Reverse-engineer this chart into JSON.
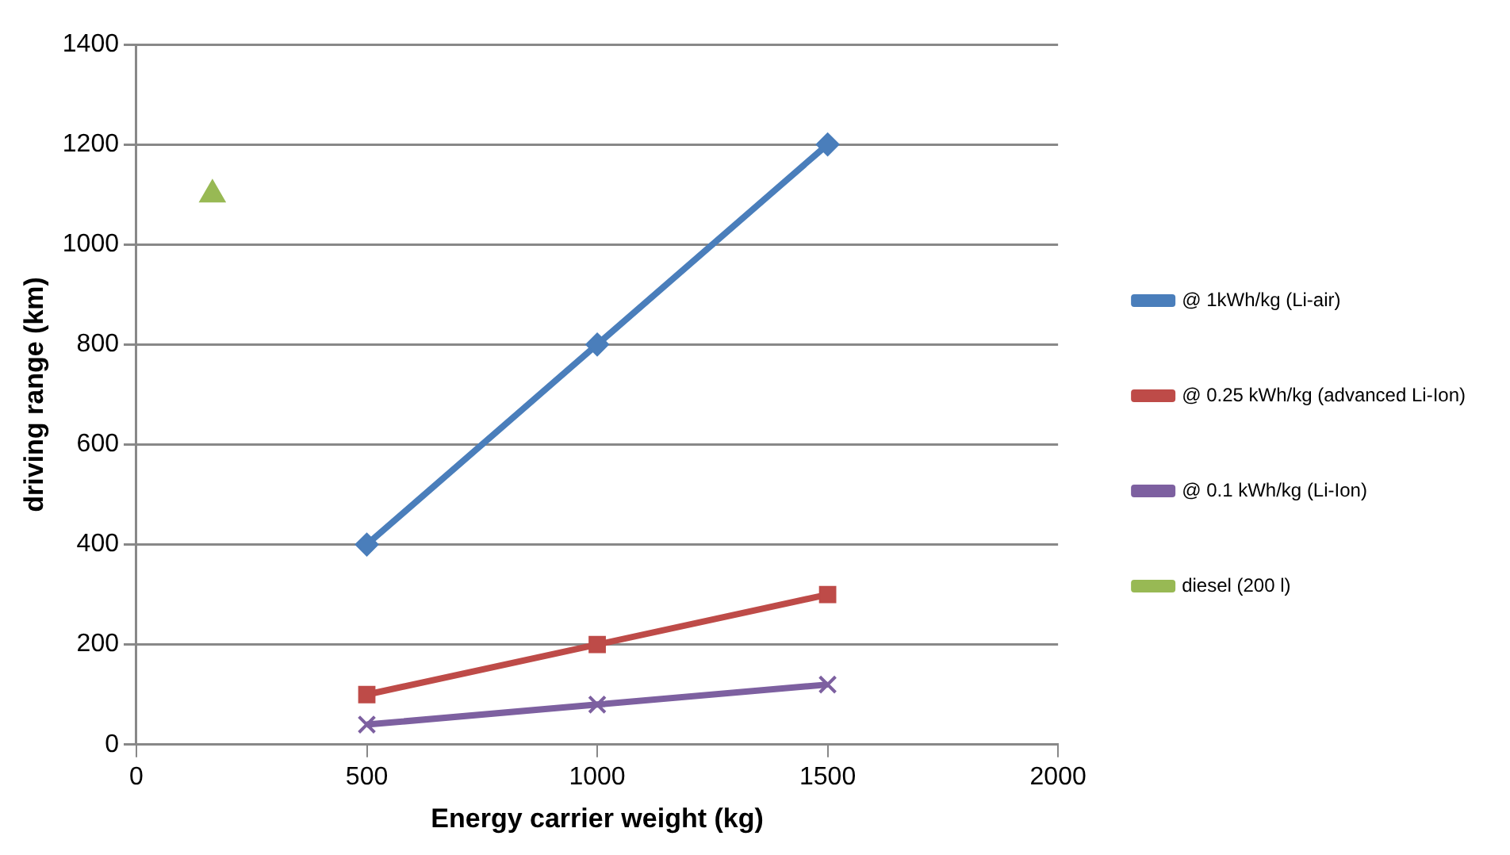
{
  "chart_data": {
    "type": "line",
    "xlabel": "Energy carrier weight (kg)",
    "ylabel": "driving range (km)",
    "xlim": [
      0,
      2000
    ],
    "xticks": [
      0,
      500,
      1000,
      1500,
      2000
    ],
    "ylim": [
      0,
      1400
    ],
    "yticks": [
      0,
      200,
      400,
      600,
      800,
      1000,
      1200,
      1400
    ],
    "grid": "y",
    "legend": "right",
    "series": [
      {
        "name": "@ 1kWh/kg (Li-air)",
        "color": "#4a7ebb",
        "marker": "diamond",
        "x": [
          500,
          1000,
          1500
        ],
        "values": [
          400,
          800,
          1200
        ]
      },
      {
        "name": "@ 0.25 kWh/kg (advanced Li-Ion)",
        "color": "#be4b48",
        "marker": "square",
        "x": [
          500,
          1000,
          1500
        ],
        "values": [
          100,
          200,
          300
        ]
      },
      {
        "name": "@ 0.1 kWh/kg (Li-Ion)",
        "color": "#7d60a0",
        "marker": "cross",
        "x": [
          500,
          1000,
          1500
        ],
        "values": [
          40,
          80,
          120
        ]
      },
      {
        "name": "diesel (200 l)",
        "type": "scatter",
        "color": "#98b954",
        "marker": "triangle",
        "x": [
          165
        ],
        "values": [
          1100
        ]
      }
    ]
  }
}
